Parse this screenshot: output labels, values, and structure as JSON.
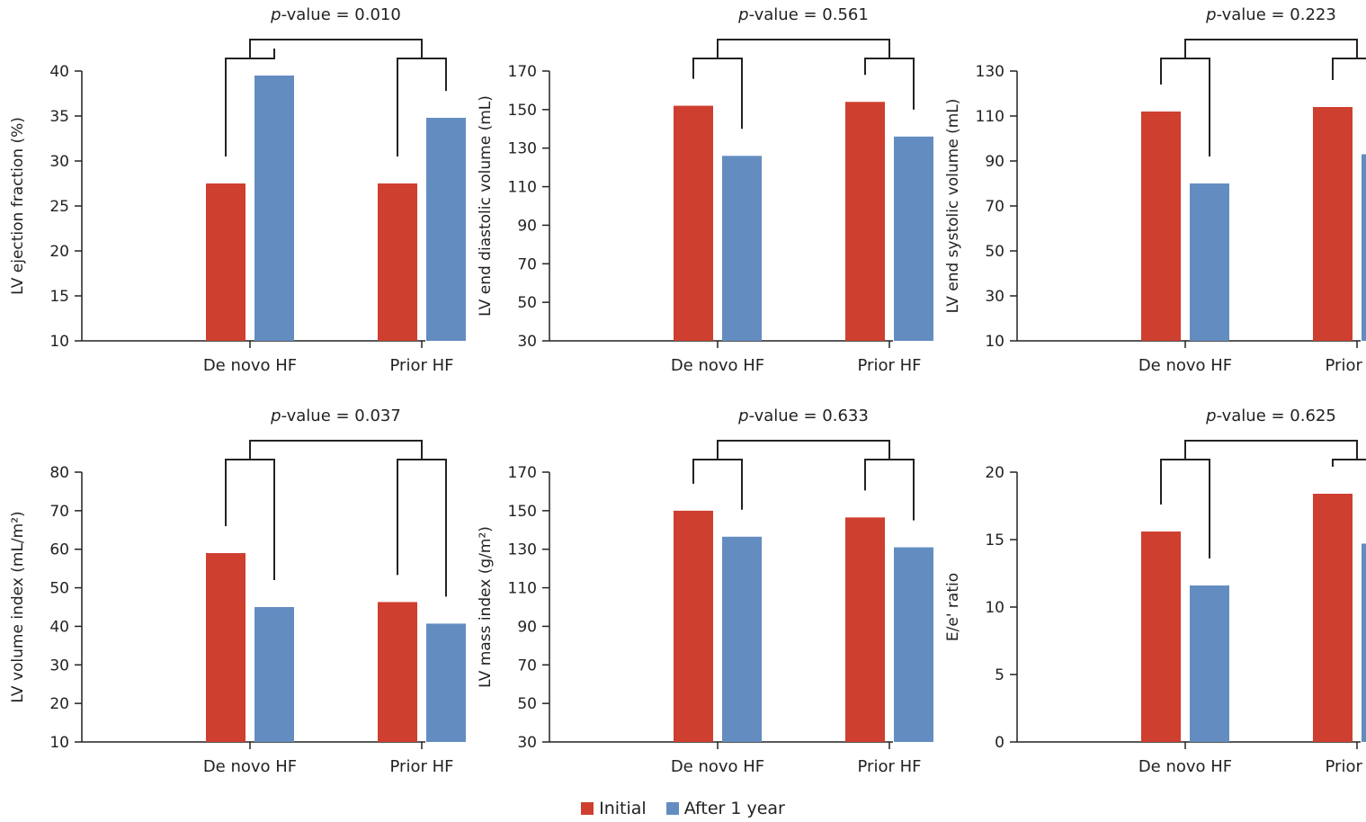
{
  "colors": {
    "initial": "#ce3f2f",
    "after": "#638dc1",
    "axis": "#222222"
  },
  "legend": [
    {
      "label": "Initial",
      "color": "#ce3f2f"
    },
    {
      "label": "After 1 year",
      "color": "#638dc1"
    }
  ],
  "chart_data": [
    {
      "type": "bar",
      "pvalue_prefix": "p",
      "pvalue_rest": "-value = 0.010",
      "ylabel": "LV ejection fraction (%)",
      "categories": [
        "De novo HF",
        "Prior HF"
      ],
      "ylim": [
        10,
        40
      ],
      "yticks": [
        10,
        15,
        20,
        25,
        30,
        35,
        40
      ],
      "series": [
        {
          "name": "Initial",
          "values": [
            27.5,
            27.5
          ]
        },
        {
          "name": "After 1 year",
          "values": [
            39.5,
            34.8
          ]
        }
      ]
    },
    {
      "type": "bar",
      "pvalue_prefix": "p",
      "pvalue_rest": "-value = 0.561",
      "ylabel": "LV end diastolic volume (mL)",
      "categories": [
        "De novo HF",
        "Prior HF"
      ],
      "ylim": [
        30,
        170
      ],
      "yticks": [
        30,
        50,
        70,
        90,
        110,
        130,
        150,
        170
      ],
      "series": [
        {
          "name": "Initial",
          "values": [
            152,
            154
          ]
        },
        {
          "name": "After 1 year",
          "values": [
            126,
            136
          ]
        }
      ]
    },
    {
      "type": "bar",
      "pvalue_prefix": "p",
      "pvalue_rest": "-value = 0.223",
      "ylabel": "LV end systolic volume (mL)",
      "categories": [
        "De novo HF",
        "Prior HF"
      ],
      "ylim": [
        10,
        130
      ],
      "yticks": [
        10,
        30,
        50,
        70,
        90,
        110,
        130
      ],
      "series": [
        {
          "name": "Initial",
          "values": [
            112,
            114
          ]
        },
        {
          "name": "After 1 year",
          "values": [
            80,
            93
          ]
        }
      ]
    },
    {
      "type": "bar",
      "pvalue_prefix": "p",
      "pvalue_rest": "-value = 0.037",
      "ylabel": "LV volume index (mL/m²)",
      "categories": [
        "De novo HF",
        "Prior HF"
      ],
      "ylim": [
        10,
        80
      ],
      "yticks": [
        10,
        20,
        30,
        40,
        50,
        60,
        70,
        80
      ],
      "series": [
        {
          "name": "Initial",
          "values": [
            59,
            46.3
          ]
        },
        {
          "name": "After 1 year",
          "values": [
            45,
            40.7
          ]
        }
      ]
    },
    {
      "type": "bar",
      "pvalue_prefix": "p",
      "pvalue_rest": "-value = 0.633",
      "ylabel": "LV mass index (g/m²)",
      "categories": [
        "De novo HF",
        "Prior HF"
      ],
      "ylim": [
        30,
        170
      ],
      "yticks": [
        30,
        50,
        70,
        90,
        110,
        130,
        150,
        170
      ],
      "series": [
        {
          "name": "Initial",
          "values": [
            150,
            146.5
          ]
        },
        {
          "name": "After 1 year",
          "values": [
            136.5,
            131
          ]
        }
      ]
    },
    {
      "type": "bar",
      "pvalue_prefix": "p",
      "pvalue_rest": "-value = 0.625",
      "ylabel": "E/e' ratio",
      "categories": [
        "De novo HF",
        "Prior HF"
      ],
      "ylim": [
        0,
        20
      ],
      "yticks": [
        0,
        5,
        10,
        15,
        20
      ],
      "series": [
        {
          "name": "Initial",
          "values": [
            15.6,
            18.4
          ]
        },
        {
          "name": "After 1 year",
          "values": [
            11.6,
            14.7
          ]
        }
      ]
    }
  ]
}
